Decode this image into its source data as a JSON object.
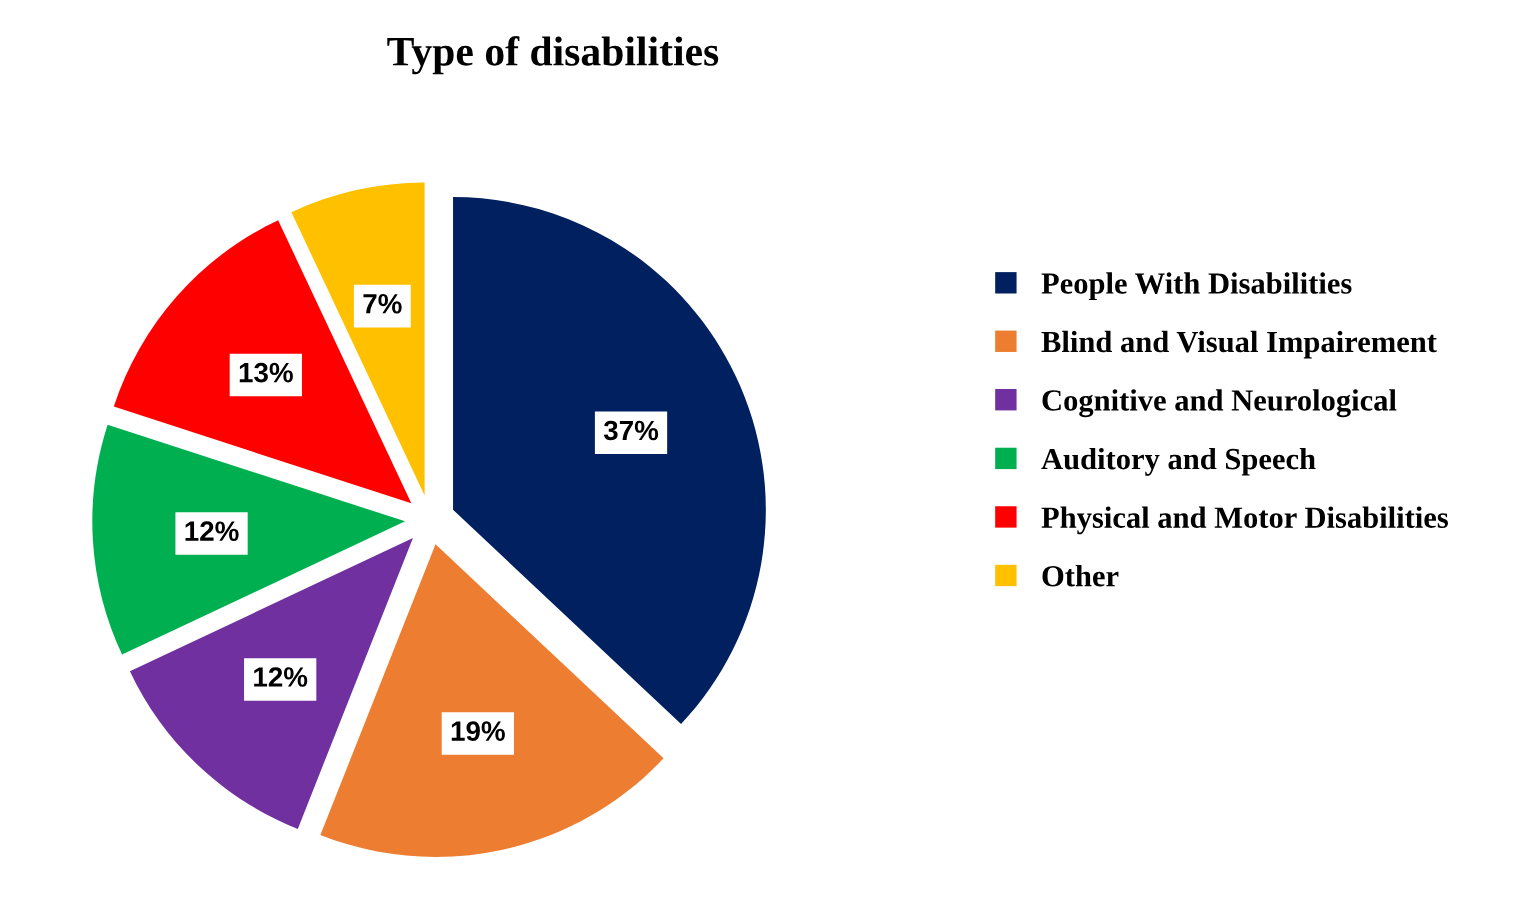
{
  "chart_data": {
    "type": "pie",
    "title": "Type of disabilities",
    "categories": [
      "People With Disabilities",
      "Blind and Visual Impairement",
      "Cognitive and Neurological",
      "Auditory and Speech",
      "Physical and Motor Disabilities",
      "Other"
    ],
    "values": [
      37,
      19,
      12,
      12,
      13,
      7
    ],
    "colors": [
      "#002060",
      "#ed7d31",
      "#7030a0",
      "#00b050",
      "#ff0000",
      "#ffc000"
    ],
    "value_labels": [
      "37%",
      "19%",
      "12%",
      "12%",
      "13%",
      "7%"
    ],
    "legend": "right"
  }
}
